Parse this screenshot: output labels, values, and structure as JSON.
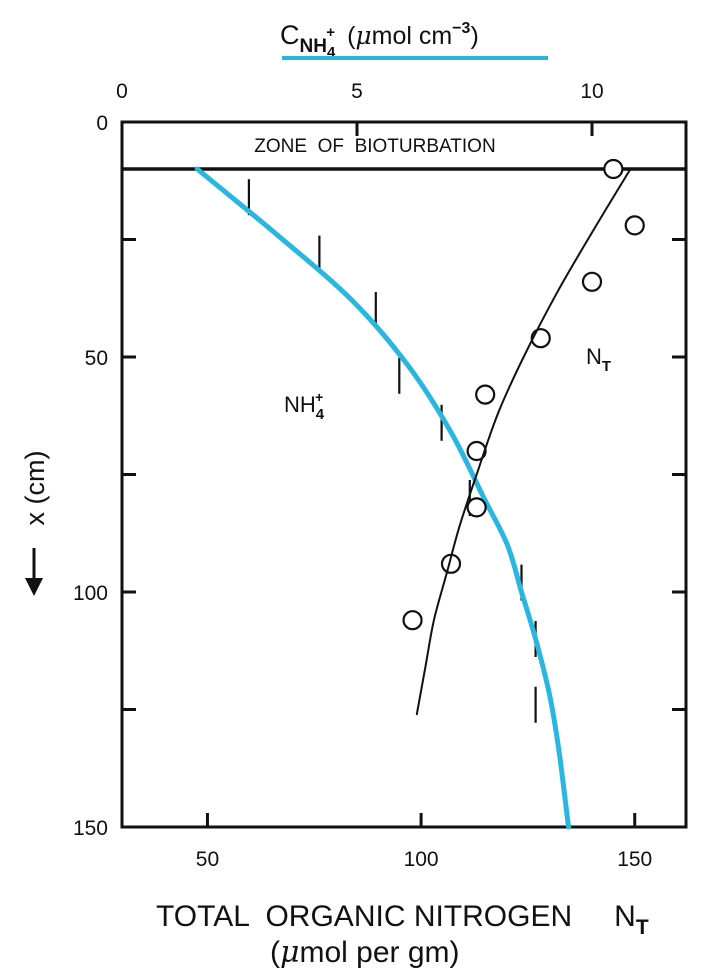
{
  "chart_data": {
    "type": "scatter",
    "top_axis": {
      "label_main": "C",
      "label_sub": "NH",
      "label_subsub": "4",
      "label_sup": "+",
      "label_units_pre": "(",
      "label_units_mu": "μ",
      "label_units_post": "mol cm",
      "label_units_exp": "−3",
      "label_units_close": ")",
      "range": [
        0,
        12
      ],
      "ticks": [
        0,
        5,
        10
      ],
      "tick_labels": [
        "0",
        "5",
        "10"
      ],
      "label_underline_color": "#29b6e0"
    },
    "bottom_axis": {
      "label_line1": "TOTAL  ORGANIC NITROGEN",
      "label_symbol": "N",
      "label_symbol_sub": "T",
      "label_line2_pre": "(",
      "label_line2_mu": "μ",
      "label_line2_post": "mol per gm)",
      "range": [
        30,
        162
      ],
      "ticks": [
        50,
        100,
        150
      ],
      "tick_labels": [
        "50",
        "100",
        "150"
      ]
    },
    "left_axis": {
      "label": "x (cm)",
      "arrow": "down",
      "range": [
        0,
        150
      ],
      "inverted": true,
      "ticks": [
        0,
        50,
        100,
        150
      ],
      "tick_labels": [
        "0",
        "50",
        "100",
        "150"
      ],
      "minor_ticks": [
        25,
        75,
        125
      ]
    },
    "zone": {
      "label": "ZONE  OF  BIOTURBATION",
      "depth_top": 0,
      "depth_bottom": 10
    },
    "series": [
      {
        "name": "NH4+ (measured)",
        "label": "NH",
        "label_sub": "4",
        "label_sup": "+",
        "marker": "vertical-tick",
        "axis": "top",
        "color": "#111111",
        "points": [
          {
            "x": 2.7,
            "y": 16
          },
          {
            "x": 4.2,
            "y": 28
          },
          {
            "x": 5.4,
            "y": 40
          },
          {
            "x": 5.9,
            "y": 54
          },
          {
            "x": 6.8,
            "y": 64
          },
          {
            "x": 7.4,
            "y": 80
          },
          {
            "x": 8.5,
            "y": 98
          },
          {
            "x": 8.8,
            "y": 110
          },
          {
            "x": 8.8,
            "y": 124
          }
        ]
      },
      {
        "name": "NH4+ model",
        "marker": "line",
        "axis": "top",
        "color": "#29b6e0",
        "points": [
          {
            "x": 1.6,
            "y": 10
          },
          {
            "x": 3.3,
            "y": 24
          },
          {
            "x": 4.9,
            "y": 38
          },
          {
            "x": 6.1,
            "y": 52
          },
          {
            "x": 7.0,
            "y": 66
          },
          {
            "x": 7.7,
            "y": 80
          },
          {
            "x": 8.2,
            "y": 90
          },
          {
            "x": 8.5,
            "y": 100
          },
          {
            "x": 8.8,
            "y": 110
          },
          {
            "x": 9.1,
            "y": 122
          },
          {
            "x": 9.3,
            "y": 134
          },
          {
            "x": 9.5,
            "y": 150
          }
        ]
      },
      {
        "name": "N_T (measured)",
        "label": "N",
        "label_sub": "T",
        "marker": "open-circle",
        "axis": "bottom",
        "color": "#111111",
        "points": [
          {
            "x": 145,
            "y": 10
          },
          {
            "x": 150,
            "y": 22
          },
          {
            "x": 140,
            "y": 34
          },
          {
            "x": 128,
            "y": 46
          },
          {
            "x": 115,
            "y": 58
          },
          {
            "x": 113,
            "y": 70
          },
          {
            "x": 113,
            "y": 82
          },
          {
            "x": 107,
            "y": 94
          },
          {
            "x": 98,
            "y": 106
          }
        ]
      },
      {
        "name": "N_T model",
        "marker": "line",
        "axis": "bottom",
        "color": "#111111",
        "points": [
          {
            "x": 149,
            "y": 10
          },
          {
            "x": 141,
            "y": 22
          },
          {
            "x": 132,
            "y": 36
          },
          {
            "x": 124,
            "y": 50
          },
          {
            "x": 118,
            "y": 62
          },
          {
            "x": 113,
            "y": 75
          },
          {
            "x": 109,
            "y": 86
          },
          {
            "x": 106,
            "y": 96
          },
          {
            "x": 103,
            "y": 106
          },
          {
            "x": 101,
            "y": 116
          },
          {
            "x": 99,
            "y": 126
          }
        ]
      }
    ]
  }
}
